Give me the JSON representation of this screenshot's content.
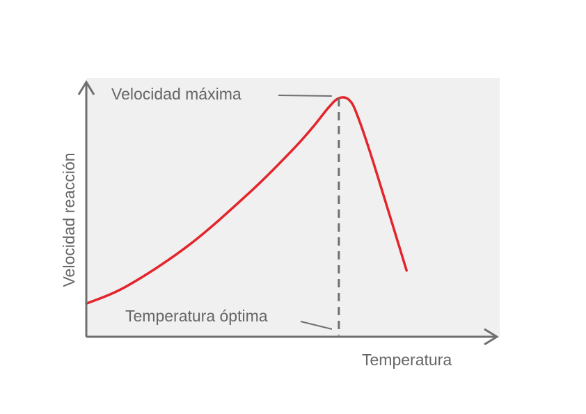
{
  "chart_data": {
    "type": "line",
    "title": "",
    "xlabel": "Temperatura",
    "ylabel": "Velocidad reacción",
    "grid": false,
    "series": [
      {
        "color": "#e3242b",
        "points": [
          {
            "x": 0,
            "y": 0.13
          },
          {
            "x": 0.1,
            "y": 0.2
          },
          {
            "x": 0.25,
            "y": 0.36
          },
          {
            "x": 0.4,
            "y": 0.57
          },
          {
            "x": 0.5,
            "y": 0.73
          },
          {
            "x": 0.55,
            "y": 0.82
          },
          {
            "x": 0.59,
            "y": 0.9
          },
          {
            "x": 0.615,
            "y": 0.937
          },
          {
            "x": 0.64,
            "y": 0.93
          },
          {
            "x": 0.66,
            "y": 0.87
          },
          {
            "x": 0.7,
            "y": 0.68
          },
          {
            "x": 0.78,
            "y": 0.26
          }
        ]
      }
    ],
    "annotations": {
      "peak_label": "Velocidad máxima",
      "optimum_label": "Temperatura óptima",
      "optimum_x": 0.615
    },
    "colors": {
      "curve": "#e3242b",
      "axes": "#6f6f6f",
      "plot_background": "#f0f0f0",
      "dashed_line": "#6f6f6f"
    }
  }
}
